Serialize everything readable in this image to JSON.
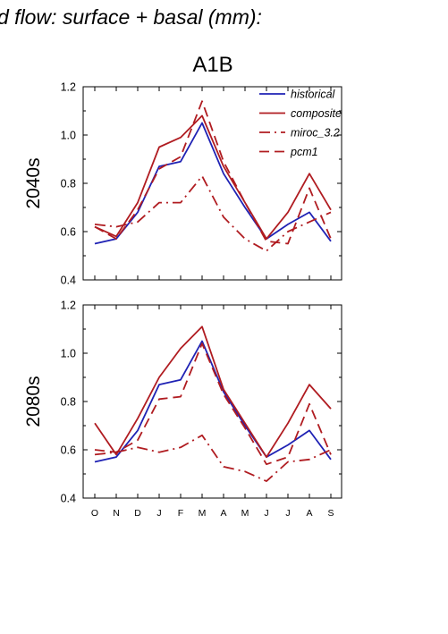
{
  "figure_title": "d flow: surface + basal (mm):",
  "chart_data": [
    {
      "type": "line",
      "title": "A1B",
      "ylabel": "2040s",
      "xlabel": "",
      "categories": [
        "O",
        "N",
        "D",
        "J",
        "F",
        "M",
        "A",
        "M",
        "J",
        "J",
        "A",
        "S"
      ],
      "ylim": [
        0.4,
        1.2
      ],
      "yticks": [
        "0.4",
        "0.6",
        "0.8",
        "1.0",
        "1.2"
      ],
      "grid": false,
      "legend_position": "top-right",
      "series": [
        {
          "name": "historical",
          "color": "#1f22b4",
          "dash": "solid",
          "values": [
            0.55,
            0.57,
            0.68,
            0.87,
            0.89,
            1.05,
            0.84,
            0.7,
            0.57,
            0.63,
            0.68,
            0.56
          ]
        },
        {
          "name": "composite",
          "color": "#b01c21",
          "dash": "solid",
          "values": [
            0.62,
            0.58,
            0.72,
            0.95,
            0.99,
            1.08,
            0.87,
            0.72,
            0.57,
            0.68,
            0.84,
            0.69
          ]
        },
        {
          "name": "miroc_3.2",
          "color": "#b01c21",
          "dash": "dashdot",
          "values": [
            0.63,
            0.62,
            0.64,
            0.72,
            0.72,
            0.83,
            0.66,
            0.57,
            0.52,
            0.6,
            0.64,
            0.68
          ]
        },
        {
          "name": "pcm1",
          "color": "#b01c21",
          "dash": "dash",
          "values": [
            0.62,
            0.57,
            0.69,
            0.86,
            0.91,
            1.14,
            0.89,
            0.72,
            0.56,
            0.55,
            0.78,
            0.57
          ]
        }
      ]
    },
    {
      "type": "line",
      "title": "",
      "ylabel": "2080s",
      "xlabel": "",
      "categories": [
        "O",
        "N",
        "D",
        "J",
        "F",
        "M",
        "A",
        "M",
        "J",
        "J",
        "A",
        "S"
      ],
      "ylim": [
        0.4,
        1.2
      ],
      "yticks": [
        "0.4",
        "0.6",
        "0.8",
        "1.0",
        "1.2"
      ],
      "grid": false,
      "series": [
        {
          "name": "historical",
          "color": "#1f22b4",
          "dash": "solid",
          "values": [
            0.55,
            0.57,
            0.68,
            0.87,
            0.89,
            1.05,
            0.84,
            0.7,
            0.57,
            0.62,
            0.68,
            0.56
          ]
        },
        {
          "name": "composite",
          "color": "#b01c21",
          "dash": "solid",
          "values": [
            0.71,
            0.58,
            0.73,
            0.9,
            1.02,
            1.11,
            0.85,
            0.71,
            0.57,
            0.71,
            0.87,
            0.77
          ]
        },
        {
          "name": "miroc_3.2",
          "color": "#b01c21",
          "dash": "dashdot",
          "values": [
            0.58,
            0.59,
            0.61,
            0.59,
            0.61,
            0.66,
            0.53,
            0.51,
            0.47,
            0.55,
            0.56,
            0.6
          ]
        },
        {
          "name": "pcm1",
          "color": "#b01c21",
          "dash": "dash",
          "values": [
            0.6,
            0.59,
            0.64,
            0.81,
            0.82,
            1.04,
            0.83,
            0.69,
            0.54,
            0.57,
            0.79,
            0.58
          ]
        }
      ]
    }
  ]
}
